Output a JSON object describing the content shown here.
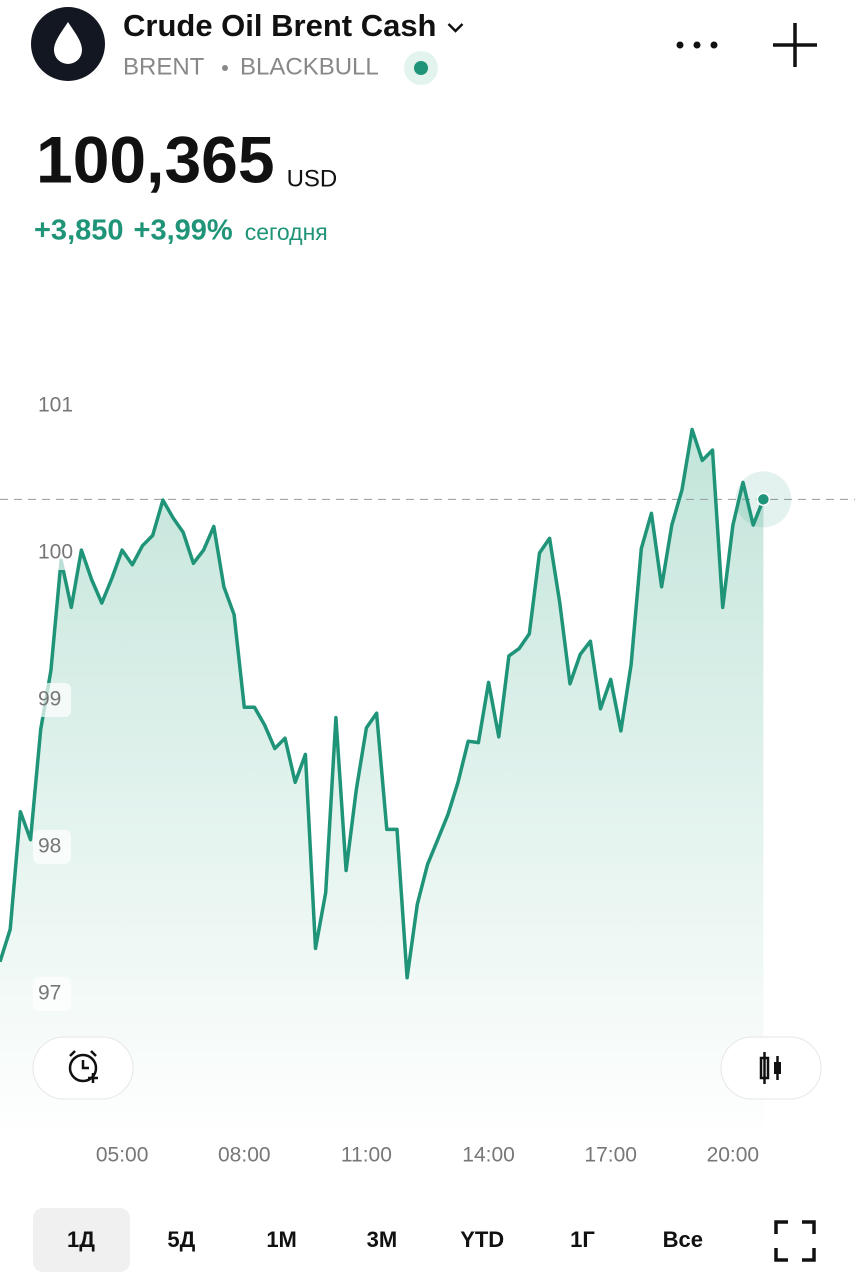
{
  "header": {
    "title": "Crude Oil Brent Cash",
    "symbol": "BRENT",
    "broker": "BLACKBULL"
  },
  "quote": {
    "price": "100,365",
    "currency": "USD",
    "change": "+3,850",
    "change_percent": "+3,99%",
    "period": "сегодня"
  },
  "chart_data": {
    "type": "line",
    "x": [
      2,
      2.25,
      2.5,
      2.75,
      3,
      3.25,
      3.5,
      3.75,
      4,
      4.25,
      4.5,
      4.75,
      5,
      5.25,
      5.5,
      5.75,
      6,
      6.25,
      6.5,
      6.75,
      7,
      7.25,
      7.5,
      7.75,
      8,
      8.25,
      8.5,
      8.75,
      9,
      9.25,
      9.5,
      9.75,
      10,
      10.25,
      10.5,
      10.75,
      11,
      11.25,
      11.5,
      11.75,
      12,
      12.25,
      12.5,
      12.75,
      13,
      13.25,
      13.5,
      13.75,
      14,
      14.25,
      14.5,
      14.75,
      15,
      15.25,
      15.5,
      15.75,
      16,
      16.25,
      16.5,
      16.75,
      17,
      17.25,
      17.5,
      17.75,
      18,
      18.25,
      18.5,
      18.75,
      19,
      19.25,
      19.5,
      19.75,
      20,
      20.25,
      20.5,
      20.75
    ],
    "values": [
      97.22,
      97.44,
      98.24,
      98.05,
      98.8,
      99.2,
      99.95,
      99.63,
      100.02,
      99.82,
      99.66,
      99.83,
      100.02,
      99.92,
      100.05,
      100.12,
      100.36,
      100.24,
      100.14,
      99.93,
      100.02,
      100.18,
      99.77,
      99.58,
      98.95,
      98.95,
      98.83,
      98.67,
      98.74,
      98.44,
      98.63,
      97.31,
      97.69,
      98.88,
      97.84,
      98.39,
      98.81,
      98.91,
      98.12,
      98.12,
      97.11,
      97.61,
      97.88,
      98.05,
      98.22,
      98.44,
      98.72,
      98.71,
      99.12,
      98.75,
      99.3,
      99.35,
      99.45,
      100.0,
      100.1,
      99.66,
      99.11,
      99.31,
      99.4,
      98.94,
      99.14,
      98.79,
      99.24,
      100.03,
      100.27,
      99.77,
      100.19,
      100.43,
      100.84,
      100.63,
      100.7,
      99.63,
      100.19,
      100.48,
      100.19,
      100.365
    ],
    "color": "#1f9478",
    "xlim": [
      2,
      23
    ],
    "xticks": [
      {
        "value": 5,
        "label": "05:00"
      },
      {
        "value": 8,
        "label": "08:00"
      },
      {
        "value": 11,
        "label": "11:00"
      },
      {
        "value": 14,
        "label": "14:00"
      },
      {
        "value": 17,
        "label": "17:00"
      },
      {
        "value": 20,
        "label": "20:00"
      }
    ],
    "ylim": [
      96,
      102
    ],
    "yticks": [
      97,
      98,
      99,
      100,
      101
    ],
    "grid": false
  },
  "timeframes": {
    "options": [
      "1Д",
      "5Д",
      "1М",
      "3М",
      "YTD",
      "1Г",
      "Все"
    ],
    "active": 0
  }
}
